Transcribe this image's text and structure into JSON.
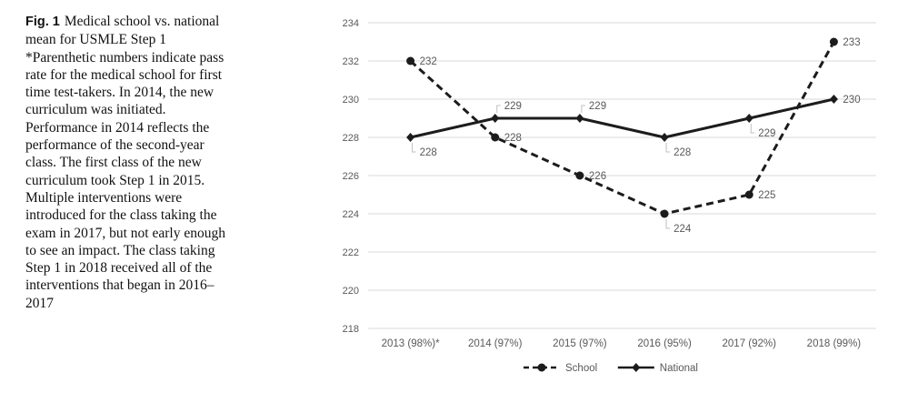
{
  "figure": {
    "label": "Fig. 1",
    "caption": "Medical school vs. national mean for USMLE Step 1 *Parenthetic numbers indicate pass rate for the medical school for first time test-takers. In 2014, the new curriculum was initiated. Performance in 2014 reflects the performance of the second-year class. The first class of the new curriculum took Step 1 in 2015. Multiple interventions were introduced for the class taking the exam in 2017, but not early enough to see an impact. The class taking Step 1 in 2018 received all of the interventions that began in 2016–2017"
  },
  "chart_data": {
    "type": "line",
    "title": "",
    "xlabel": "",
    "ylabel": "",
    "categories": [
      "2013 (98%)*",
      "2014 (97%)",
      "2015 (97%)",
      "2016 (95%)",
      "2017 (92%)",
      "2018 (99%)"
    ],
    "series": [
      {
        "name": "School",
        "values": [
          232,
          228,
          226,
          224,
          225,
          233
        ],
        "line_style": "dashed",
        "marker": "circle",
        "label_anchors": [
          "right",
          "right",
          "right",
          "below",
          "right",
          "right"
        ]
      },
      {
        "name": "National",
        "values": [
          228,
          229,
          229,
          228,
          229,
          230
        ],
        "line_style": "solid",
        "marker": "diamond",
        "label_anchors": [
          "below",
          "above",
          "above",
          "below",
          "below",
          "right"
        ]
      }
    ],
    "ylim": [
      218,
      234
    ],
    "ytick_step": 2,
    "yticks": [
      218,
      220,
      222,
      224,
      226,
      228,
      230,
      232,
      234
    ],
    "grid": true,
    "data_labels_visible": true,
    "legend_position": "bottom",
    "colors": {
      "series_line": "#1c1c1c",
      "axis_text": "#595959",
      "data_label": "#595959",
      "gridline": "#d9d9d9",
      "leader": "#bfbfbf",
      "background": "#ffffff"
    }
  }
}
